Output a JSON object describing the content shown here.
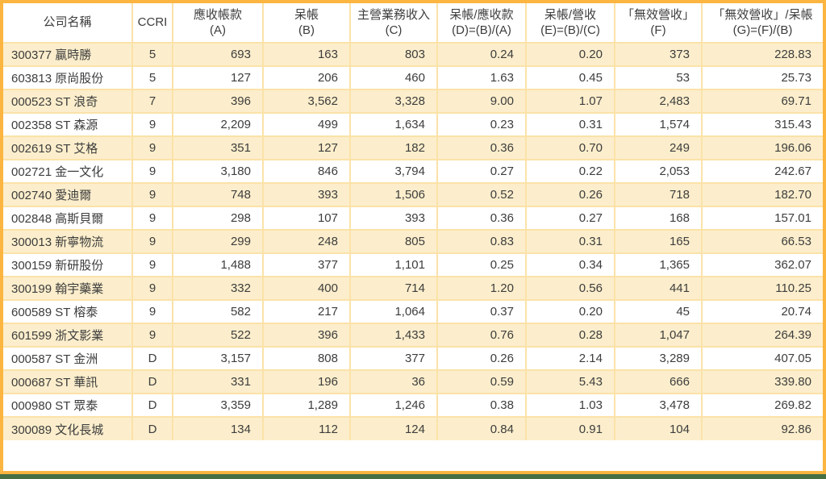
{
  "colors": {
    "outer_border": "#FBB540",
    "inner_border": "#FBE2A8",
    "row_stripe": "#FCEECC",
    "bottom_bar": "#476F44",
    "text": "#3D3D3D"
  },
  "chart_data": {
    "type": "table",
    "columns": [
      {
        "label": "公司名稱",
        "formula": ""
      },
      {
        "label": "CCRI",
        "formula": ""
      },
      {
        "label": "應收帳款",
        "formula": "(A)"
      },
      {
        "label": "呆帳",
        "formula": "(B)"
      },
      {
        "label": "主營業務收入",
        "formula": "(C)"
      },
      {
        "label": "呆帳/應收款",
        "formula": "(D)=(B)/(A)"
      },
      {
        "label": "呆帳/營收",
        "formula": "(E)=(B)/(C)"
      },
      {
        "label": "「無效營收」",
        "formula": "(F)"
      },
      {
        "label": "「無效營收」/呆帳",
        "formula": "(G)=(F)/(B)"
      }
    ],
    "rows": [
      [
        "300377 贏時勝",
        "5",
        "693",
        "163",
        "803",
        "0.24",
        "0.20",
        "373",
        "228.83"
      ],
      [
        "603813 原尚股份",
        "5",
        "127",
        "206",
        "460",
        "1.63",
        "0.45",
        "53",
        "25.73"
      ],
      [
        "000523 ST 浪奇",
        "7",
        "396",
        "3,562",
        "3,328",
        "9.00",
        "1.07",
        "2,483",
        "69.71"
      ],
      [
        "002358 ST 森源",
        "9",
        "2,209",
        "499",
        "1,634",
        "0.23",
        "0.31",
        "1,574",
        "315.43"
      ],
      [
        "002619 ST 艾格",
        "9",
        "351",
        "127",
        "182",
        "0.36",
        "0.70",
        "249",
        "196.06"
      ],
      [
        "002721 金一文化",
        "9",
        "3,180",
        "846",
        "3,794",
        "0.27",
        "0.22",
        "2,053",
        "242.67"
      ],
      [
        "002740 愛迪爾",
        "9",
        "748",
        "393",
        "1,506",
        "0.52",
        "0.26",
        "718",
        "182.70"
      ],
      [
        "002848 高斯貝爾",
        "9",
        "298",
        "107",
        "393",
        "0.36",
        "0.27",
        "168",
        "157.01"
      ],
      [
        "300013 新寧物流",
        "9",
        "299",
        "248",
        "805",
        "0.83",
        "0.31",
        "165",
        "66.53"
      ],
      [
        "300159 新研股份",
        "9",
        "1,488",
        "377",
        "1,101",
        "0.25",
        "0.34",
        "1,365",
        "362.07"
      ],
      [
        "300199 翰宇藥業",
        "9",
        "332",
        "400",
        "714",
        "1.20",
        "0.56",
        "441",
        "110.25"
      ],
      [
        "600589 ST 榕泰",
        "9",
        "582",
        "217",
        "1,064",
        "0.37",
        "0.20",
        "45",
        "20.74"
      ],
      [
        "601599 浙文影業",
        "9",
        "522",
        "396",
        "1,433",
        "0.76",
        "0.28",
        "1,047",
        "264.39"
      ],
      [
        "000587 ST 金洲",
        "D",
        "3,157",
        "808",
        "377",
        "0.26",
        "2.14",
        "3,289",
        "407.05"
      ],
      [
        "000687 ST 華訊",
        "D",
        "331",
        "196",
        "36",
        "0.59",
        "5.43",
        "666",
        "339.80"
      ],
      [
        "000980 ST 眾泰",
        "D",
        "3,359",
        "1,289",
        "1,246",
        "0.38",
        "1.03",
        "3,478",
        "269.82"
      ],
      [
        "300089 文化長城",
        "D",
        "134",
        "112",
        "124",
        "0.84",
        "0.91",
        "104",
        "92.86"
      ]
    ]
  }
}
